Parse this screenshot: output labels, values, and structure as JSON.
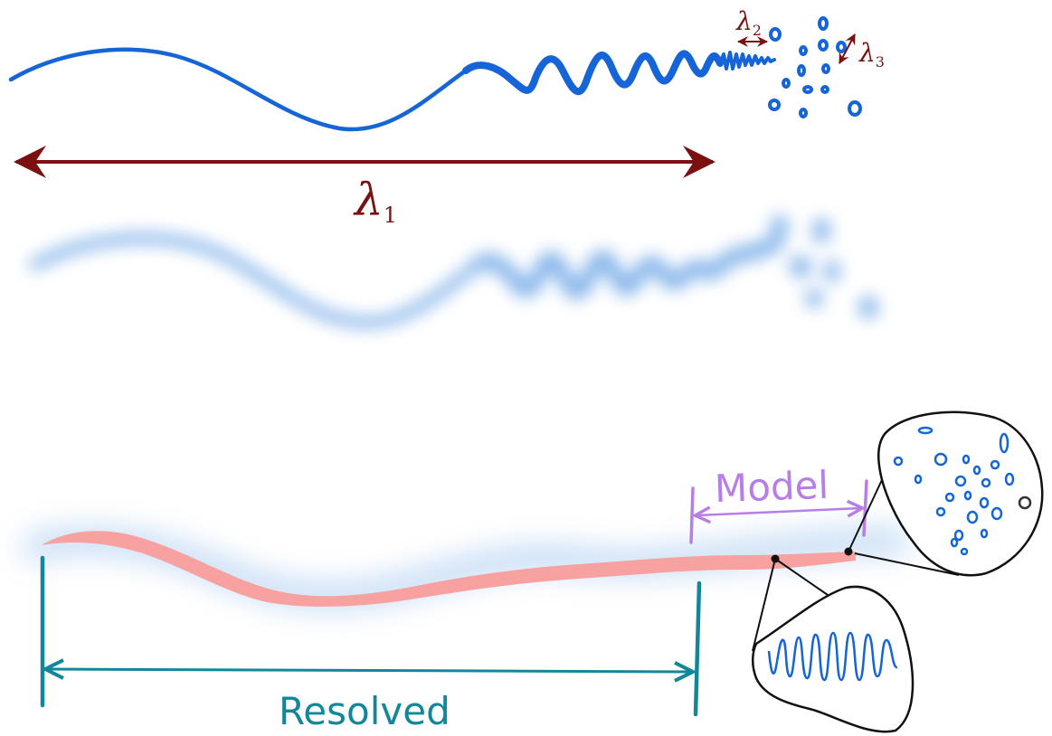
{
  "labels": {
    "lambda1": {
      "symbol": "λ",
      "sub": "1"
    },
    "lambda2": {
      "symbol": "λ",
      "sub": "2"
    },
    "lambda3": {
      "symbol": "λ",
      "sub": "3"
    },
    "model": "Model",
    "resolved": "Resolved"
  },
  "colors": {
    "wave": "#1565d8",
    "wave_blur": "#5b9be3",
    "annotation": "#7b1010",
    "smoothed_path": "#f7a1a1",
    "model_bracket": "#b77ee8",
    "resolved_bracket": "#13879a",
    "ink": "#111111"
  },
  "icons": {
    "zoom_small_scale": "eddies-inset",
    "zoom_mid_scale": "oscillation-inset"
  }
}
